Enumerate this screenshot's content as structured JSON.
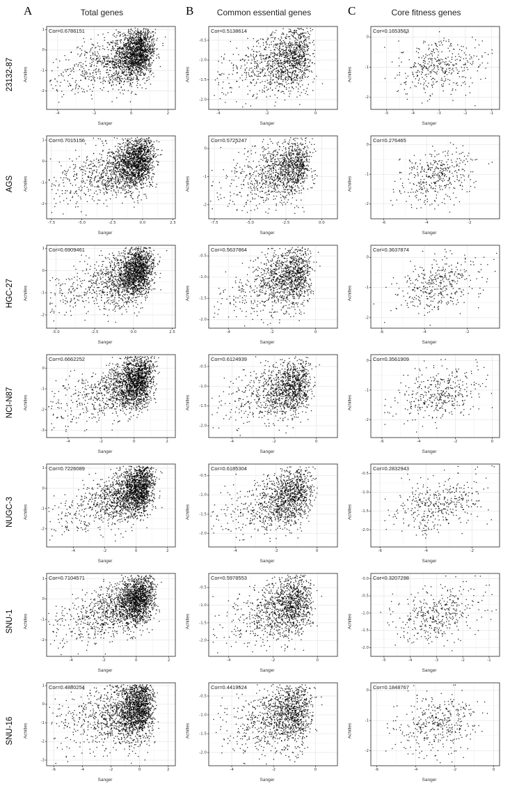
{
  "figure": {
    "panel_labels": [
      "A",
      "B",
      "C"
    ],
    "column_titles": [
      "Total genes",
      "Common essential genes",
      "Core fitness genes"
    ],
    "row_labels": [
      "23132-87",
      "AGS",
      "HGC-27",
      "NCI-N87",
      "NUGC-3",
      "SNU-1",
      "SNU-16"
    ],
    "xlabel": "Sanger",
    "ylabel": "Achilles",
    "point_color": "#000000",
    "grid_color": "#e7e7e7",
    "minor_grid_color": "#f3f3f3",
    "frame_color": "#4a4a4a"
  },
  "chart_data": [
    {
      "type": "scatter",
      "row": "23132-87",
      "column": "Total genes",
      "cor_label": "Cor=0.6786151",
      "cor": 0.6786151,
      "n_points": 2000,
      "xlim": [
        -4.6,
        2.4
      ],
      "ylim": [
        -2.9,
        1.15
      ],
      "xticks": [
        -4,
        -2,
        0,
        2
      ],
      "yticks": [
        -2,
        -1,
        0,
        1
      ],
      "xlabel": "Sanger",
      "ylabel": "Achilles"
    },
    {
      "type": "scatter",
      "row": "23132-87",
      "column": "Common essential genes",
      "cor_label": "Cor=0.5138614",
      "cor": 0.5138614,
      "n_points": 1200,
      "xlim": [
        -4.4,
        0.9
      ],
      "ylim": [
        -2.25,
        -0.15
      ],
      "xticks": [
        -4,
        -2,
        0
      ],
      "yticks": [
        -2.0,
        -1.5,
        -1.0,
        -0.5
      ],
      "xlabel": "Sanger",
      "ylabel": "Achilles"
    },
    {
      "type": "scatter",
      "row": "23132-87",
      "column": "Core fitness genes",
      "cor_label": "Cor=0.1653563",
      "cor": 0.1653563,
      "n_points": 380,
      "xlim": [
        -5.6,
        -0.7
      ],
      "ylim": [
        -2.4,
        0.35
      ],
      "xticks": [
        -5,
        -4,
        -3,
        -2,
        -1
      ],
      "yticks": [
        -2,
        -1,
        0
      ],
      "xlabel": "Sanger",
      "ylabel": "Achilles"
    },
    {
      "type": "scatter",
      "row": "AGS",
      "column": "Total genes",
      "cor_label": "Cor=0.7015156",
      "cor": 0.7015156,
      "n_points": 2000,
      "xlim": [
        -7.9,
        2.7
      ],
      "ylim": [
        -2.7,
        1.2
      ],
      "xticks": [
        -7.5,
        -5.0,
        -2.5,
        0.0,
        2.5
      ],
      "yticks": [
        -2,
        -1,
        0,
        1
      ],
      "xlabel": "Sanger",
      "ylabel": "Achilles"
    },
    {
      "type": "scatter",
      "row": "AGS",
      "column": "Common essential genes",
      "cor_label": "Cor=0.5725247",
      "cor": 0.5725247,
      "n_points": 1200,
      "xlim": [
        -7.9,
        1.1
      ],
      "ylim": [
        -2.5,
        0.45
      ],
      "xticks": [
        -7.5,
        -5.0,
        -2.5,
        0.0
      ],
      "yticks": [
        -2,
        -1,
        0
      ],
      "xlabel": "Sanger",
      "ylabel": "Achilles"
    },
    {
      "type": "scatter",
      "row": "AGS",
      "column": "Core fitness genes",
      "cor_label": "Cor=0.276465",
      "cor": 0.276465,
      "n_points": 380,
      "xlim": [
        -6.6,
        -0.6
      ],
      "ylim": [
        -2.5,
        0.3
      ],
      "xticks": [
        -6,
        -4,
        -2
      ],
      "yticks": [
        -2,
        -1,
        0
      ],
      "xlabel": "Sanger",
      "ylabel": "Achilles"
    },
    {
      "type": "scatter",
      "row": "HGC-27",
      "column": "Total genes",
      "cor_label": "Cor=0.6909461",
      "cor": 0.6909461,
      "n_points": 2000,
      "xlim": [
        -5.6,
        2.7
      ],
      "ylim": [
        -2.6,
        1.15
      ],
      "xticks": [
        -5.0,
        -2.5,
        0.0,
        2.5
      ],
      "yticks": [
        -2,
        -1,
        0,
        1
      ],
      "xlabel": "Sanger",
      "ylabel": "Achilles"
    },
    {
      "type": "scatter",
      "row": "HGC-27",
      "column": "Common essential genes",
      "cor_label": "Cor=0.5637864",
      "cor": 0.5637864,
      "n_points": 1200,
      "xlim": [
        -4.9,
        1.0
      ],
      "ylim": [
        -2.2,
        -0.25
      ],
      "xticks": [
        -4,
        -2,
        0
      ],
      "yticks": [
        -2.0,
        -1.5,
        -1.0,
        -0.5
      ],
      "xlabel": "Sanger",
      "ylabel": "Achilles"
    },
    {
      "type": "scatter",
      "row": "HGC-27",
      "column": "Core fitness genes",
      "cor_label": "Cor=0.3637874",
      "cor": 0.3637874,
      "n_points": 380,
      "xlim": [
        -6.5,
        -0.5
      ],
      "ylim": [
        -2.35,
        0.4
      ],
      "xticks": [
        -6,
        -4,
        -2
      ],
      "yticks": [
        -2,
        -1,
        0
      ],
      "xlabel": "Sanger",
      "ylabel": "Achilles"
    },
    {
      "type": "scatter",
      "row": "NCI-N87",
      "column": "Total genes",
      "cor_label": "Cor=0.6662252",
      "cor": 0.6662252,
      "n_points": 2000,
      "xlim": [
        -5.3,
        2.5
      ],
      "ylim": [
        -3.35,
        0.65
      ],
      "xticks": [
        -4,
        -2,
        0,
        2
      ],
      "yticks": [
        -3,
        -2,
        -1,
        0
      ],
      "xlabel": "Sanger",
      "ylabel": "Achilles"
    },
    {
      "type": "scatter",
      "row": "NCI-N87",
      "column": "Common essential genes",
      "cor_label": "Cor=0.6124939",
      "cor": 0.6124939,
      "n_points": 1200,
      "xlim": [
        -5.1,
        1.0
      ],
      "ylim": [
        -2.3,
        -0.2
      ],
      "xticks": [
        -4,
        -2,
        0
      ],
      "yticks": [
        -2.0,
        -1.5,
        -1.0,
        -0.5
      ],
      "xlabel": "Sanger",
      "ylabel": "Achilles"
    },
    {
      "type": "scatter",
      "row": "NCI-N87",
      "column": "Core fitness genes",
      "cor_label": "Cor=0.3561909",
      "cor": 0.3561909,
      "n_points": 380,
      "xlim": [
        -6.6,
        0.4
      ],
      "ylim": [
        -2.6,
        0.2
      ],
      "xticks": [
        -6,
        -4,
        -2,
        0
      ],
      "yticks": [
        -2,
        -1,
        0
      ],
      "xlabel": "Sanger",
      "ylabel": "Achilles"
    },
    {
      "type": "scatter",
      "row": "NUGC-3",
      "column": "Total genes",
      "cor_label": "Cor=0.7226089",
      "cor": 0.7226089,
      "n_points": 2000,
      "xlim": [
        -5.7,
        2.5
      ],
      "ylim": [
        -2.9,
        1.2
      ],
      "xticks": [
        -4,
        -2,
        0,
        2
      ],
      "yticks": [
        -2,
        -1,
        0,
        1
      ],
      "xlabel": "Sanger",
      "ylabel": "Achilles"
    },
    {
      "type": "scatter",
      "row": "NUGC-3",
      "column": "Common essential genes",
      "cor_label": "Cor=0.6185304",
      "cor": 0.6185304,
      "n_points": 1200,
      "xlim": [
        -5.3,
        1.0
      ],
      "ylim": [
        -2.35,
        -0.2
      ],
      "xticks": [
        -4,
        -2,
        0
      ],
      "yticks": [
        -2.0,
        -1.5,
        -1.0,
        -0.5
      ],
      "xlabel": "Sanger",
      "ylabel": "Achilles"
    },
    {
      "type": "scatter",
      "row": "NUGC-3",
      "column": "Core fitness genes",
      "cor_label": "Cor=0.2832943",
      "cor": 0.2832943,
      "n_points": 380,
      "xlim": [
        -6.4,
        -0.8
      ],
      "ylim": [
        -2.45,
        -0.25
      ],
      "xticks": [
        -6,
        -4,
        -2
      ],
      "yticks": [
        -2.0,
        -1.5,
        -1.0,
        -0.5
      ],
      "xlabel": "Sanger",
      "ylabel": "Achilles"
    },
    {
      "type": "scatter",
      "row": "SNU-1",
      "column": "Total genes",
      "cor_label": "Cor=0.7104571",
      "cor": 0.7104571,
      "n_points": 2000,
      "xlim": [
        -5.5,
        2.4
      ],
      "ylim": [
        -2.8,
        1.25
      ],
      "xticks": [
        -4,
        -2,
        0,
        2
      ],
      "yticks": [
        -2,
        -1,
        0,
        1
      ],
      "xlabel": "Sanger",
      "ylabel": "Achilles"
    },
    {
      "type": "scatter",
      "row": "SNU-1",
      "column": "Common essential genes",
      "cor_label": "Cor=0.5978553",
      "cor": 0.5978553,
      "n_points": 1200,
      "xlim": [
        -4.9,
        0.9
      ],
      "ylim": [
        -2.45,
        -0.1
      ],
      "xticks": [
        -4,
        -2,
        0
      ],
      "yticks": [
        -2.0,
        -1.5,
        -1.0,
        -0.5
      ],
      "xlabel": "Sanger",
      "ylabel": "Achilles"
    },
    {
      "type": "scatter",
      "row": "SNU-1",
      "column": "Core fitness genes",
      "cor_label": "Cor=0.3207298",
      "cor": 0.3207298,
      "n_points": 380,
      "xlim": [
        -5.5,
        -0.6
      ],
      "ylim": [
        -2.25,
        0.15
      ],
      "xticks": [
        -5,
        -4,
        -3,
        -2,
        -1
      ],
      "yticks": [
        -2.0,
        -1.5,
        -1.0,
        -0.5,
        0.0
      ],
      "xlabel": "Sanger",
      "ylabel": "Achilles"
    },
    {
      "type": "scatter",
      "row": "SNU-16",
      "column": "Total genes",
      "cor_label": "Cor=0.4880254",
      "cor": 0.4880254,
      "n_points": 2000,
      "xlim": [
        -6.5,
        2.5
      ],
      "ylim": [
        -3.3,
        1.15
      ],
      "xticks": [
        -6,
        -4,
        -2,
        0,
        2
      ],
      "yticks": [
        -3,
        -2,
        -1,
        0,
        1
      ],
      "xlabel": "Sanger",
      "ylabel": "Achilles"
    },
    {
      "type": "scatter",
      "row": "SNU-16",
      "column": "Common essential genes",
      "cor_label": "Cor=0.4419524",
      "cor": 0.4419524,
      "n_points": 1200,
      "xlim": [
        -5.1,
        1.05
      ],
      "ylim": [
        -2.35,
        -0.15
      ],
      "xticks": [
        -4,
        -2,
        0
      ],
      "yticks": [
        -2.0,
        -1.5,
        -1.0,
        -0.5
      ],
      "xlabel": "Sanger",
      "ylabel": "Achilles"
    },
    {
      "type": "scatter",
      "row": "SNU-16",
      "column": "Core fitness genes",
      "cor_label": "Cor=0.1848767",
      "cor": 0.1848767,
      "n_points": 380,
      "xlim": [
        -6.3,
        0.3
      ],
      "ylim": [
        -2.5,
        0.25
      ],
      "xticks": [
        -6,
        -4,
        -2,
        0
      ],
      "yticks": [
        -2,
        -1,
        0
      ],
      "xlabel": "Sanger",
      "ylabel": "Achilles"
    }
  ]
}
